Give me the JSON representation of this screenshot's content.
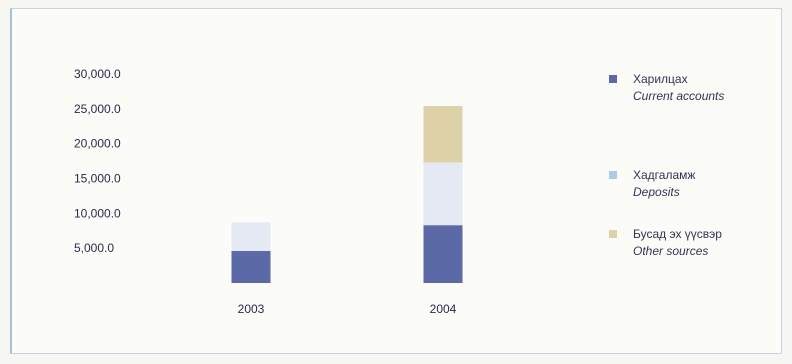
{
  "chart_data": {
    "type": "bar",
    "stacked": true,
    "categories": [
      "2003",
      "2004"
    ],
    "series": [
      {
        "name": "Харилцах",
        "name_en": "Current accounts",
        "color": "#5b6aa6",
        "values": [
          4600,
          8300
        ]
      },
      {
        "name": "Хадгаламж",
        "name_en": "Deposits",
        "color": "#e4e9f3",
        "values": [
          4100,
          9000
        ]
      },
      {
        "name": "Бусад эх үүсвэр",
        "name_en": "Other sources",
        "color": "#dcd1a7",
        "values": [
          0,
          8100
        ]
      }
    ],
    "yticks": [
      "30,000.0",
      "25,000.0",
      "20,000.0",
      "15,000.0",
      "10,000.0",
      "5,000.0"
    ],
    "ytick_values": [
      30000,
      25000,
      20000,
      15000,
      10000,
      5000
    ],
    "ylim": [
      0,
      30000
    ],
    "grid": false,
    "legend_position": "right"
  }
}
